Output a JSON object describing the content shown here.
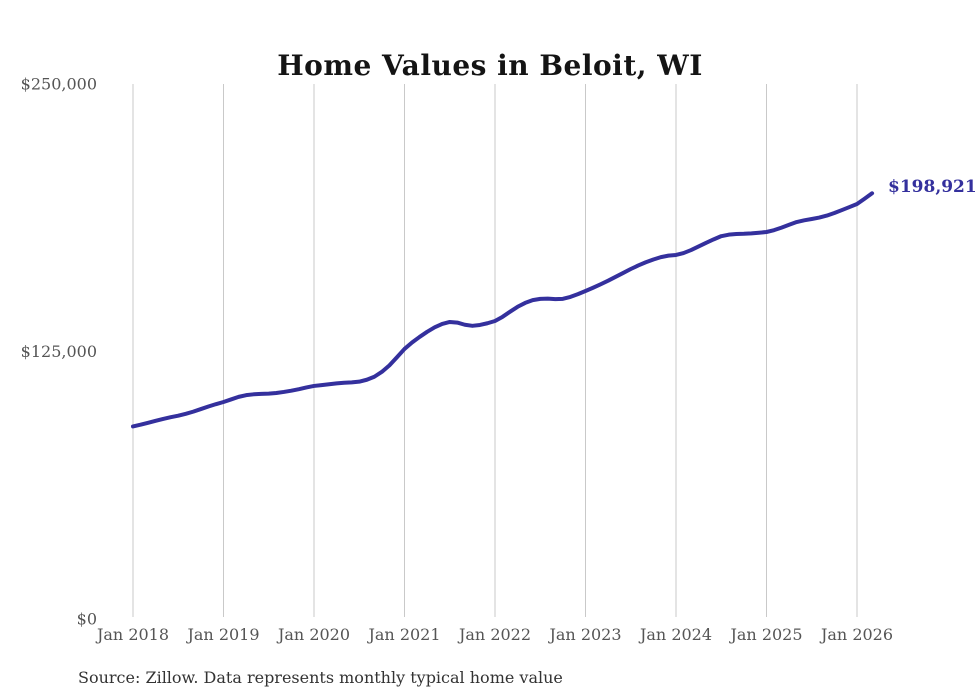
{
  "title": "Home Values in Beloit, WI",
  "source_note": "Source: Zillow. Data represents monthly typical home value",
  "end_label": "$198,921",
  "colors": {
    "line": "#34309d",
    "gridline": "#c9c9c9",
    "tick_label": "#555555",
    "title": "#141414",
    "source": "#333333",
    "background": "#ffffff"
  },
  "chart_data": {
    "type": "line",
    "title": "Home Values in Beloit, WI",
    "series_name": "Monthly typical home value",
    "xlabel": "",
    "ylabel": "",
    "ylim": [
      0,
      250000
    ],
    "grid": "vertical-only",
    "legend": "none",
    "y_ticks": [
      {
        "value": 0,
        "label": "$0"
      },
      {
        "value": 125000,
        "label": "$125,000"
      },
      {
        "value": 250000,
        "label": "$250,000"
      }
    ],
    "x_ticks": [
      {
        "month_index": 0,
        "label": "Jan 2018"
      },
      {
        "month_index": 12,
        "label": "Jan 2019"
      },
      {
        "month_index": 24,
        "label": "Jan 2020"
      },
      {
        "month_index": 36,
        "label": "Jan 2021"
      },
      {
        "month_index": 48,
        "label": "Jan 2022"
      },
      {
        "month_index": 60,
        "label": "Jan 2023"
      },
      {
        "month_index": 72,
        "label": "Jan 2024"
      },
      {
        "month_index": 84,
        "label": "Jan 2025"
      },
      {
        "month_index": 96,
        "label": "Jan 2026"
      }
    ],
    "x_start": "2018-01",
    "x_end": "2026-03",
    "frequency": "monthly",
    "last_value": 198921,
    "last_value_label": "$198,921",
    "values": [
      90000,
      90800,
      91700,
      92600,
      93500,
      94300,
      95000,
      95900,
      96900,
      98100,
      99300,
      100400,
      101400,
      102600,
      103800,
      104600,
      105000,
      105200,
      105300,
      105600,
      106100,
      106700,
      107400,
      108200,
      108900,
      109300,
      109700,
      110100,
      110400,
      110600,
      110900,
      111800,
      113200,
      115500,
      118500,
      122300,
      126200,
      129200,
      131800,
      134200,
      136300,
      137900,
      138800,
      138500,
      137500,
      137000,
      137400,
      138200,
      139250,
      141200,
      143600,
      145900,
      147700,
      149000,
      149600,
      149700,
      149500,
      149600,
      150500,
      151800,
      153270,
      154800,
      156400,
      158100,
      159900,
      161700,
      163550,
      165200,
      166700,
      168000,
      169100,
      169800,
      170100,
      171000,
      172400,
      174100,
      175800,
      177400,
      178900,
      179600,
      179900,
      180000,
      180200,
      180500,
      180840,
      181700,
      182900,
      184200,
      185500,
      186300,
      186920,
      187600,
      188500,
      189700,
      191100,
      192500,
      193925,
      196400,
      198921
    ]
  }
}
